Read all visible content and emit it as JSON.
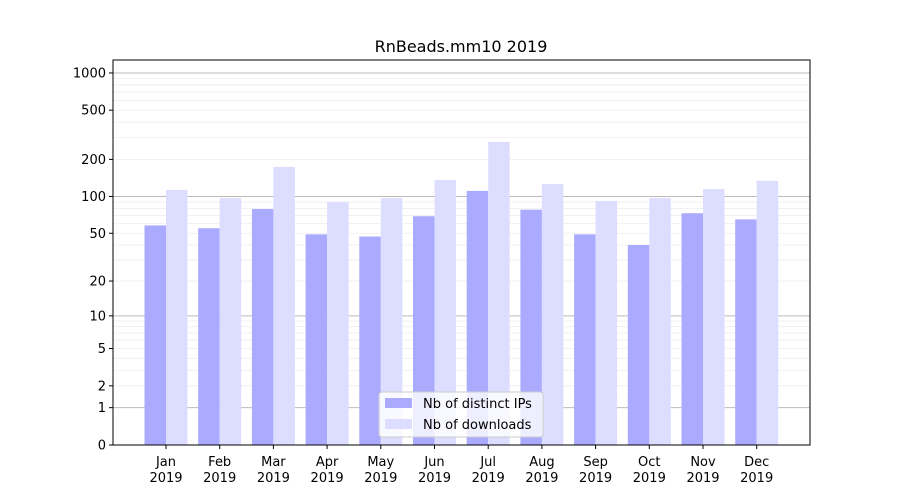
{
  "chart_data": {
    "type": "bar",
    "title": "RnBeads.mm10 2019",
    "xlabel": "",
    "ylabel": "",
    "yscale": "log10(1+y)",
    "ylim": [
      0,
      1300
    ],
    "yticks": [
      0,
      1,
      2,
      5,
      10,
      20,
      50,
      100,
      200,
      500,
      1000
    ],
    "grid": true,
    "legend_position": "bottom-center",
    "categories": [
      "Jan\n2019",
      "Feb\n2019",
      "Mar\n2019",
      "Apr\n2019",
      "May\n2019",
      "Jun\n2019",
      "Jul\n2019",
      "Aug\n2019",
      "Sep\n2019",
      "Oct\n2019",
      "Nov\n2019",
      "Dec\n2019"
    ],
    "series": [
      {
        "name": "Nb of distinct IPs",
        "color": "#aaaaff",
        "values": [
          58,
          55,
          79,
          49,
          47,
          69,
          111,
          78,
          49,
          40,
          73,
          65
        ]
      },
      {
        "name": "Nb of downloads",
        "color": "#ddddff",
        "values": [
          113,
          97,
          174,
          90,
          97,
          136,
          277,
          126,
          92,
          97,
          115,
          134
        ]
      }
    ]
  }
}
